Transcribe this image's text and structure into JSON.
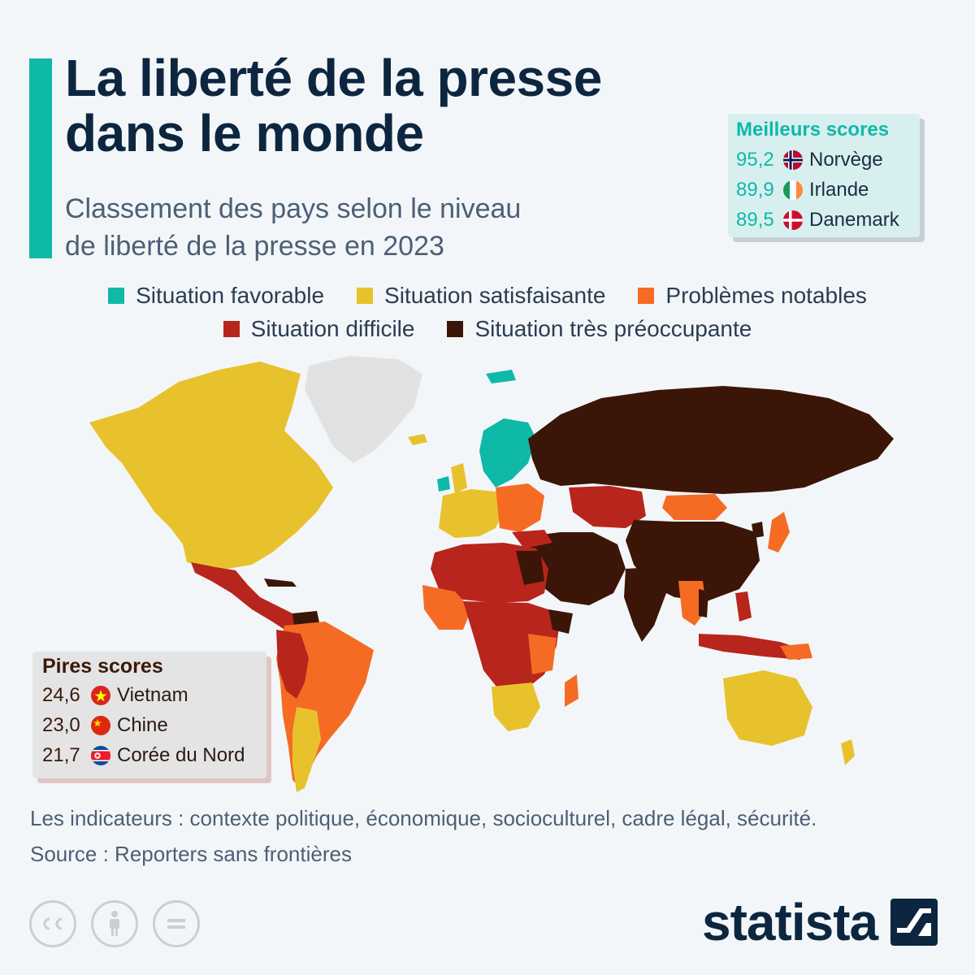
{
  "header": {
    "title_line1": "La liberté de la presse",
    "title_line2": "dans le monde",
    "subtitle_line1": "Classement des pays selon le niveau",
    "subtitle_line2": "de liberté de la presse en 2023"
  },
  "best_scores": {
    "heading": "Meilleurs scores",
    "items": [
      {
        "score": "95,2",
        "country": "Norvège",
        "flag": "norway-flag-icon"
      },
      {
        "score": "89,9",
        "country": "Irlande",
        "flag": "ireland-flag-icon"
      },
      {
        "score": "89,5",
        "country": "Danemark",
        "flag": "denmark-flag-icon"
      }
    ]
  },
  "legend": {
    "items": [
      {
        "label": "Situation favorable",
        "color": "#0fb9a8"
      },
      {
        "label": "Situation satisfaisante",
        "color": "#e8c22d"
      },
      {
        "label": "Problèmes notables",
        "color": "#f56b24"
      },
      {
        "label": "Situation difficile",
        "color": "#b8251c"
      },
      {
        "label": "Situation très préoccupante",
        "color": "#3b1608"
      }
    ]
  },
  "worst_scores": {
    "heading": "Pires scores",
    "items": [
      {
        "score": "24,6",
        "country": "Vietnam",
        "flag": "vietnam-flag-icon"
      },
      {
        "score": "23,0",
        "country": "Chine",
        "flag": "china-flag-icon"
      },
      {
        "score": "21,7",
        "country": "Corée du Nord",
        "flag": "north-korea-flag-icon"
      }
    ]
  },
  "footer": {
    "indicators": "Les indicateurs : contexte politique, économique, socioculturel, cadre légal, sécurité.",
    "source": "Source : Reporters sans frontières",
    "brand": "statista",
    "license_icons": [
      "cc-icon",
      "attribution-icon",
      "no-derivatives-icon"
    ]
  },
  "colors": {
    "accent": "#0fb9a8",
    "title": "#0d2640",
    "no_data": "#e2e2e2"
  }
}
